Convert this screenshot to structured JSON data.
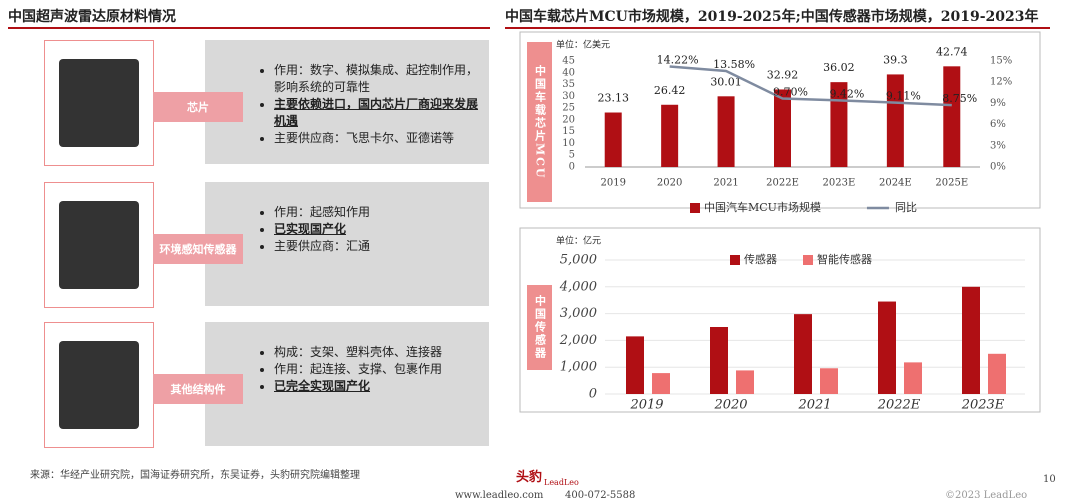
{
  "left": {
    "title": "中国超声波雷达原材料情况",
    "items": [
      {
        "label": "芯片",
        "bullets": [
          {
            "text": "作用：数字、模拟集成、起控制作用，影响系统的可靠性",
            "bold": false
          },
          {
            "text": "主要依赖进口，国内芯片厂商迎来发展机遇",
            "bold": true
          },
          {
            "text": "主要供应商：飞思卡尔、亚德诺等",
            "bold": false
          }
        ]
      },
      {
        "label": "环境感知传感器",
        "bullets": [
          {
            "text": "作用：起感知作用",
            "bold": false
          },
          {
            "text": "已实现国产化",
            "bold": true
          },
          {
            "text": "主要供应商：汇通",
            "bold": false
          }
        ]
      },
      {
        "label": "其他结构件",
        "bullets": [
          {
            "text": "构成：支架、塑料壳体、连接器",
            "bold": false
          },
          {
            "text": "作用：起连接、支撑、包裹作用",
            "bold": false
          },
          {
            "text": "已完全实现国产化",
            "bold": true
          }
        ]
      }
    ]
  },
  "right_title": "中国车载芯片MCU市场规模，2019-2025年;中国传感器市场规模，2019-2023年",
  "chart_data": [
    {
      "type": "bar_line",
      "side_label": "中国车载芯片MCU",
      "unit": "单位：亿美元",
      "categories": [
        "2019",
        "2020",
        "2021",
        "2022E",
        "2023E",
        "2024E",
        "2025E"
      ],
      "series": [
        {
          "name": "中国汽车MCU市场规模",
          "color": "#b00f14",
          "values": [
            23.13,
            26.42,
            30.01,
            32.92,
            36.02,
            39.3,
            42.74
          ]
        },
        {
          "name": "同比",
          "color": "#7f8ba0",
          "axis": "y2",
          "values": [
            null,
            14.22,
            13.58,
            9.7,
            9.42,
            9.11,
            8.75
          ],
          "value_labels": [
            null,
            "14.22%",
            "13.58%",
            "9.70%",
            "9.42%",
            "9.11%",
            "8.75%"
          ]
        }
      ],
      "ylim": [
        0,
        45
      ],
      "yticks": [
        0,
        5,
        10,
        15,
        20,
        25,
        30,
        35,
        40,
        45
      ],
      "y2lim": [
        0,
        15
      ],
      "y2ticks": [
        {
          "value": 0,
          "label": "0%"
        },
        {
          "value": 3,
          "label": "3%"
        },
        {
          "value": 6,
          "label": "6%"
        },
        {
          "value": 9,
          "label": "9%"
        },
        {
          "value": 12,
          "label": "12%"
        },
        {
          "value": 15,
          "label": "15%"
        }
      ]
    },
    {
      "type": "bar",
      "side_label": "中国传感器",
      "unit": "单位：亿元",
      "categories": [
        "2019",
        "2020",
        "2021",
        "2022E",
        "2023E"
      ],
      "series": [
        {
          "name": "传感器",
          "color": "#b00f14",
          "values": [
            2150,
            2500,
            2980,
            3450,
            4000
          ]
        },
        {
          "name": "智能传感器",
          "color": "#ee7070",
          "values": [
            780,
            880,
            960,
            1180,
            1500
          ]
        }
      ],
      "ylim": [
        0,
        5000
      ],
      "yticks": [
        0,
        {
          "value": 1000,
          "label": "1,000"
        },
        {
          "value": 2000,
          "label": "2,000"
        },
        {
          "value": 3000,
          "label": "3,000"
        },
        {
          "value": 4000,
          "label": "4,000"
        },
        {
          "value": 5000,
          "label": "5,000"
        }
      ]
    }
  ],
  "source": "来源：华经产业研究院，国海证券研究所，东吴证券，头豹研究院编辑整理",
  "footer": {
    "brand": "头豹",
    "brand_en": "LeadLeo",
    "site": "www.leadleo.com",
    "phone": "400-072-5588",
    "copyright": "©2023 LeadLeo",
    "page": "10"
  }
}
